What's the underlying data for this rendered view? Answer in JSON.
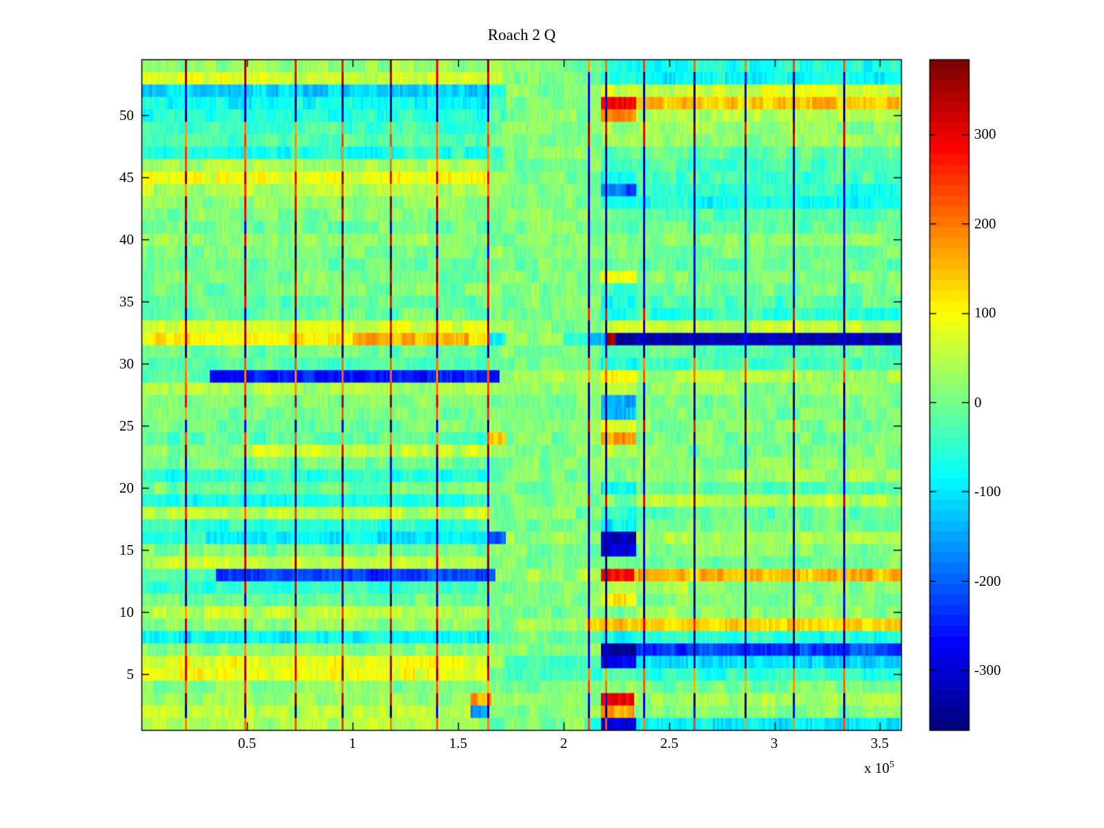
{
  "figure": {
    "background": "#ffffff"
  },
  "chart_data": {
    "type": "heatmap",
    "title": "Roach 2 Q",
    "xlabel": "",
    "ylabel": "",
    "x_exponent_prefix": "x 10",
    "x_exponent": "5",
    "xlim_x1e5": [
      0,
      3.6
    ],
    "ylim_rows": [
      1,
      54
    ],
    "clim": [
      -367,
      384
    ],
    "colormap": "jet-64",
    "grid": false,
    "legend": "colorbar-right",
    "xticks": [
      {
        "value": 0.5,
        "label": "0.5"
      },
      {
        "value": 1.0,
        "label": "1"
      },
      {
        "value": 1.5,
        "label": "1.5"
      },
      {
        "value": 2.0,
        "label": "2"
      },
      {
        "value": 2.5,
        "label": "2.5"
      },
      {
        "value": 3.0,
        "label": "3"
      },
      {
        "value": 3.5,
        "label": "3.5"
      }
    ],
    "yticks": [
      {
        "value": 5,
        "label": "5"
      },
      {
        "value": 10,
        "label": "10"
      },
      {
        "value": 15,
        "label": "15"
      },
      {
        "value": 20,
        "label": "20"
      },
      {
        "value": 25,
        "label": "25"
      },
      {
        "value": 30,
        "label": "30"
      },
      {
        "value": 35,
        "label": "35"
      },
      {
        "value": 40,
        "label": "40"
      },
      {
        "value": 45,
        "label": "45"
      },
      {
        "value": 50,
        "label": "50"
      }
    ],
    "colorbar_ticks": [
      {
        "value": 300,
        "label": "300"
      },
      {
        "value": 200,
        "label": "200"
      },
      {
        "value": 100,
        "label": "100"
      },
      {
        "value": 0,
        "label": "0"
      },
      {
        "value": -100,
        "label": "-100"
      },
      {
        "value": -200,
        "label": "-200"
      },
      {
        "value": -300,
        "label": "-300"
      }
    ],
    "vlines_left_x1e5": [
      0.21,
      0.49,
      0.73,
      0.95,
      1.18,
      1.4,
      1.64
    ],
    "vlines_right_x1e5": [
      2.12,
      2.2,
      2.38,
      2.62,
      2.86,
      3.09,
      3.33
    ],
    "zones_x1e5": {
      "left": [
        0,
        1.64
      ],
      "transition": [
        1.64,
        1.73
      ],
      "quiet": [
        1.73,
        2.18
      ],
      "anomaly_block": [
        2.18,
        2.34
      ],
      "right": [
        2.34,
        3.6
      ]
    },
    "noise": {
      "fine": 22,
      "patch": 26
    },
    "rows": [
      {
        "i": 54,
        "L": 25,
        "T": 15,
        "Q": 10,
        "B": -55,
        "R": -70,
        "lv": 345,
        "rv": 205
      },
      {
        "i": 53,
        "L": 75,
        "T": 40,
        "Q": 10,
        "B": -75,
        "R": -85,
        "lv": 345,
        "rv": -340
      },
      {
        "i": 52,
        "L": -115,
        "T": -70,
        "Q": 5,
        "B": 65,
        "R": 70,
        "lv": -340,
        "rv": -340
      },
      {
        "i": 51,
        "L": -85,
        "T": -45,
        "Q": 10,
        "B": 295,
        "R": 150,
        "lv": -340,
        "rv": -340
      },
      {
        "i": 50,
        "L": -60,
        "T": -30,
        "Q": 10,
        "B": 170,
        "R": 40,
        "lv": -340,
        "rv": -340
      },
      {
        "i": 49,
        "L": -40,
        "T": 0,
        "Q": 10,
        "B": 25,
        "R": 20,
        "lv": 205,
        "rv": 345
      },
      {
        "i": 48,
        "L": -25,
        "T": 0,
        "Q": 10,
        "B": 20,
        "R": 25,
        "lv": 205,
        "rv": 345
      },
      {
        "i": 47,
        "L": -65,
        "T": -20,
        "Q": 5,
        "B": -30,
        "R": -15,
        "lv": 205,
        "rv": -340
      },
      {
        "i": 46,
        "L": 35,
        "T": -20,
        "Q": 5,
        "B": -50,
        "R": -30,
        "lv": 205,
        "rv": -340
      },
      {
        "i": 45,
        "L": 90,
        "T": 30,
        "Q": 5,
        "B": -60,
        "R": -35,
        "lv": 345,
        "rv": -340
      },
      {
        "i": 44,
        "L": 45,
        "T": 10,
        "Q": 5,
        "B": -200,
        "R": -55,
        "lv": 205,
        "rv": -340
      },
      {
        "i": 43,
        "L": 15,
        "T": 10,
        "Q": 0,
        "B": -90,
        "R": -70,
        "lv": 345,
        "rv": -340
      },
      {
        "i": 42,
        "L": 5,
        "T": 10,
        "Q": 10,
        "B": 0,
        "R": -25,
        "lv": 345,
        "rv": -340
      },
      {
        "i": 41,
        "L": 0,
        "T": 10,
        "Q": 10,
        "B": -20,
        "R": -10,
        "lv": -340,
        "rv": -340
      },
      {
        "i": 40,
        "L": 20,
        "T": 10,
        "Q": 15,
        "B": 30,
        "R": 15,
        "lv": 345,
        "rv": -340
      },
      {
        "i": 39,
        "L": 5,
        "T": 10,
        "Q": 10,
        "B": 0,
        "R": 0,
        "lv": -340,
        "rv": -340
      },
      {
        "i": 38,
        "L": -10,
        "T": 10,
        "Q": 5,
        "B": -20,
        "R": -15,
        "lv": 345,
        "rv": -340
      },
      {
        "i": 37,
        "L": 5,
        "T": 10,
        "Q": 10,
        "B": 90,
        "R": 5,
        "lv": 345,
        "rv": -340
      },
      {
        "i": 36,
        "L": 0,
        "T": 10,
        "Q": 10,
        "B": -40,
        "R": 0,
        "lv": 345,
        "rv": -340
      },
      {
        "i": 35,
        "L": -15,
        "T": 5,
        "Q": 5,
        "B": -80,
        "R": -20,
        "lv": 345,
        "rv": -340
      },
      {
        "i": 34,
        "L": -5,
        "T": 5,
        "Q": 5,
        "B": -70,
        "R": -55,
        "lv": -340,
        "rv": 345
      },
      {
        "i": 33,
        "L": 70,
        "T": 30,
        "Q": 15,
        "B": 60,
        "R": 55,
        "lv": 345,
        "rv": -340
      },
      {
        "i": 32,
        "segs": [
          [
            0,
            1.0,
            115
          ],
          [
            1.0,
            1.55,
            160
          ],
          [
            1.55,
            1.64,
            110
          ],
          [
            1.64,
            1.73,
            -75
          ],
          [
            1.73,
            2.0,
            25
          ],
          [
            2.0,
            2.12,
            -70
          ],
          [
            2.12,
            2.2,
            -150
          ],
          [
            2.2,
            2.25,
            370
          ],
          [
            2.25,
            2.34,
            -355
          ],
          [
            2.34,
            3.61,
            -330
          ]
        ],
        "lv": 345,
        "rv": -340
      },
      {
        "i": 31,
        "L": -5,
        "T": 5,
        "Q": 10,
        "B": -40,
        "R": -20,
        "lv": -340,
        "rv": -340
      },
      {
        "i": 30,
        "L": -25,
        "T": 0,
        "Q": 5,
        "B": -60,
        "R": -35,
        "lv": 205,
        "rv": 205
      },
      {
        "i": 29,
        "segs": [
          [
            0,
            0.32,
            -15
          ],
          [
            0.32,
            1.7,
            -260
          ],
          [
            1.7,
            2.18,
            25
          ],
          [
            2.18,
            2.34,
            100
          ],
          [
            2.34,
            3.61,
            35
          ]
        ],
        "lv": 205,
        "rv": 205
      },
      {
        "i": 28,
        "L": 40,
        "T": 20,
        "Q": 15,
        "B": 60,
        "R": 20,
        "lv": 205,
        "rv": -340
      },
      {
        "i": 27,
        "L": 5,
        "T": 10,
        "Q": 10,
        "B": -150,
        "R": 5,
        "lv": 345,
        "rv": -340
      },
      {
        "i": 26,
        "L": 0,
        "T": 5,
        "Q": 5,
        "B": -140,
        "R": 5,
        "lv": 205,
        "rv": -340
      },
      {
        "i": 25,
        "L": 0,
        "T": 5,
        "Q": 10,
        "B": 85,
        "R": 10,
        "lv": -340,
        "rv": 345
      },
      {
        "i": 24,
        "L": -20,
        "T": 160,
        "Q": 10,
        "B": 170,
        "R": 10,
        "lv": 205,
        "rv": -340
      },
      {
        "i": 23,
        "segs": [
          [
            0,
            0.5,
            15
          ],
          [
            0.5,
            1.64,
            60
          ],
          [
            1.64,
            1.73,
            20
          ],
          [
            1.73,
            2.18,
            10
          ],
          [
            2.18,
            2.34,
            40
          ],
          [
            2.34,
            3.61,
            10
          ]
        ],
        "lv": 345,
        "rv": -340
      },
      {
        "i": 22,
        "L": -5,
        "T": 5,
        "Q": 10,
        "B": 0,
        "R": 10,
        "lv": -340,
        "rv": -340
      },
      {
        "i": 21,
        "L": -60,
        "T": -10,
        "Q": 10,
        "B": 0,
        "R": 25,
        "lv": -340,
        "rv": -340
      },
      {
        "i": 20,
        "L": -5,
        "T": 0,
        "Q": 0,
        "B": -90,
        "R": -20,
        "lv": 345,
        "rv": -340
      },
      {
        "i": 19,
        "L": -70,
        "T": -10,
        "Q": 10,
        "B": 0,
        "R": 45,
        "lv": -340,
        "rv": 345
      },
      {
        "i": 18,
        "L": 45,
        "T": 10,
        "Q": 5,
        "B": -60,
        "R": -15,
        "lv": 205,
        "rv": -340
      },
      {
        "i": 17,
        "L": -55,
        "T": -10,
        "Q": 0,
        "B": -90,
        "R": 0,
        "lv": -340,
        "rv": -340
      },
      {
        "i": 16,
        "segs": [
          [
            0,
            0.3,
            -40
          ],
          [
            0.3,
            1.64,
            -95
          ],
          [
            1.64,
            1.73,
            -220
          ],
          [
            1.73,
            2.18,
            25
          ],
          [
            2.18,
            2.34,
            -330
          ],
          [
            2.34,
            3.61,
            35
          ]
        ],
        "lv": -340,
        "rv": -340
      },
      {
        "i": 15,
        "L": 0,
        "T": 5,
        "Q": 10,
        "B": -300,
        "R": 10,
        "lv": 345,
        "rv": -340
      },
      {
        "i": 14,
        "L": 55,
        "T": 15,
        "Q": 10,
        "B": 0,
        "R": 0,
        "lv": 345,
        "rv": -340
      },
      {
        "i": 13,
        "segs": [
          [
            0,
            0.35,
            -15
          ],
          [
            0.35,
            1.68,
            -230
          ],
          [
            1.68,
            2.1,
            20
          ],
          [
            2.1,
            2.18,
            60
          ],
          [
            2.18,
            2.33,
            290
          ],
          [
            2.33,
            3.61,
            155
          ]
        ],
        "lv": -340,
        "rv": -340
      },
      {
        "i": 12,
        "L": -45,
        "T": -10,
        "Q": 10,
        "B": 30,
        "R": 25,
        "lv": 345,
        "rv": -340
      },
      {
        "i": 11,
        "L": -5,
        "T": 5,
        "Q": 10,
        "B": 110,
        "R": 10,
        "lv": -340,
        "rv": -340
      },
      {
        "i": 10,
        "L": 50,
        "T": 15,
        "Q": 10,
        "B": 0,
        "R": 20,
        "lv": 205,
        "rv": -340
      },
      {
        "i": 9,
        "segs": [
          [
            0,
            1.64,
            20
          ],
          [
            1.64,
            1.73,
            15
          ],
          [
            1.73,
            2.1,
            30
          ],
          [
            2.1,
            2.34,
            140
          ],
          [
            2.34,
            3.61,
            135
          ]
        ],
        "lv": 345,
        "rv": 345
      },
      {
        "i": 8,
        "L": -85,
        "T": -30,
        "Q": -10,
        "B": -80,
        "R": -60,
        "lv": -340,
        "rv": -340
      },
      {
        "i": 7,
        "segs": [
          [
            0,
            1.64,
            10
          ],
          [
            1.64,
            1.73,
            5
          ],
          [
            1.73,
            2.18,
            10
          ],
          [
            2.18,
            2.34,
            -355
          ],
          [
            2.34,
            3.61,
            -230
          ]
        ],
        "lv": 205,
        "rv": -340
      },
      {
        "i": 6,
        "segs": [
          [
            0,
            1.64,
            90
          ],
          [
            1.64,
            1.73,
            30
          ],
          [
            1.73,
            2.18,
            -40
          ],
          [
            2.18,
            2.34,
            -280
          ],
          [
            2.34,
            3.61,
            -110
          ]
        ],
        "lv": 345,
        "rv": -340
      },
      {
        "i": 5,
        "L": 95,
        "T": -30,
        "Q": -40,
        "B": -10,
        "R": -55,
        "lv": 345,
        "rv": 205
      },
      {
        "i": 4,
        "L": 15,
        "T": 5,
        "Q": 5,
        "B": 30,
        "R": 0,
        "lv": 205,
        "rv": 205
      },
      {
        "i": 3,
        "segs": [
          [
            0,
            1.56,
            25
          ],
          [
            1.56,
            1.66,
            170
          ],
          [
            1.66,
            1.73,
            30
          ],
          [
            1.73,
            2.18,
            20
          ],
          [
            2.18,
            2.33,
            300
          ],
          [
            2.33,
            3.61,
            35
          ]
        ],
        "lv": 345,
        "rv": -340
      },
      {
        "i": 2,
        "segs": [
          [
            0,
            1.56,
            55
          ],
          [
            1.56,
            1.64,
            -180
          ],
          [
            1.64,
            1.73,
            20
          ],
          [
            1.73,
            2.18,
            15
          ],
          [
            2.18,
            2.33,
            180
          ],
          [
            2.33,
            3.61,
            15
          ]
        ],
        "lv": -340,
        "rv": -340
      },
      {
        "i": 1,
        "segs": [
          [
            0,
            1.64,
            45
          ],
          [
            1.64,
            1.73,
            -30
          ],
          [
            1.73,
            2.1,
            10
          ],
          [
            2.1,
            2.18,
            -60
          ],
          [
            2.18,
            2.34,
            -300
          ],
          [
            2.34,
            3.61,
            -95
          ]
        ],
        "lv": 205,
        "rv": 205
      }
    ]
  }
}
